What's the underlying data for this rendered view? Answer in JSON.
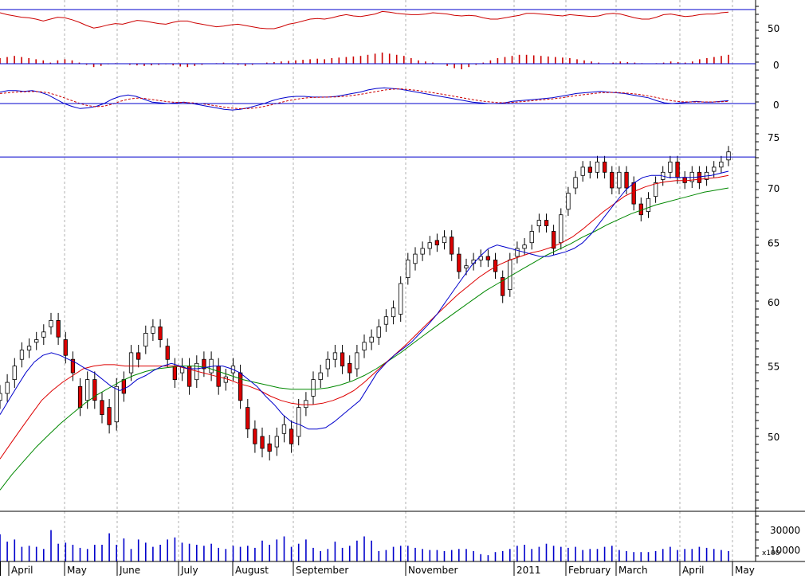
{
  "chart_data": {
    "type": "candlestick",
    "grid": true,
    "colors": {
      "frame": "#000000",
      "reference_line": "#0000cc",
      "grid": "#b0b0b0",
      "up_candle": "#ffffff",
      "down_candle": "#dd0000",
      "rsi": "#cc0000",
      "histogram": "#cc0000",
      "macd": "#0000cc",
      "macd_signal": "#cc0000",
      "ma_short": "#0000cc",
      "ma_mid": "#dd0000",
      "ma_long": "#008800",
      "volume": "#0000cc"
    },
    "x_axis": {
      "labels": [
        "April",
        "May",
        "June",
        "July",
        "August",
        "September",
        "November",
        "2011",
        "February",
        "March",
        "April",
        "May"
      ]
    },
    "rsi_panel": {
      "y_ticks": [
        "50"
      ],
      "reference_level": 70,
      "values": [
        65,
        62,
        60,
        58,
        57,
        55,
        52,
        55,
        58,
        57,
        54,
        50,
        45,
        41,
        43,
        46,
        48,
        47,
        50,
        53,
        52,
        50,
        48,
        47,
        50,
        52,
        52,
        49,
        47,
        45,
        43,
        44,
        46,
        47,
        45,
        43,
        41,
        40,
        40,
        43,
        47,
        49,
        52,
        55,
        56,
        55,
        57,
        60,
        62,
        60,
        59,
        61,
        63,
        67,
        66,
        64,
        63,
        62,
        62,
        63,
        65,
        64,
        63,
        61,
        60,
        61,
        60,
        57,
        55,
        55,
        57,
        59,
        61,
        64,
        64,
        63,
        62,
        61,
        60,
        62,
        61,
        60,
        59,
        60,
        63,
        64,
        63,
        60,
        57,
        55,
        55,
        58,
        62,
        63,
        61,
        59,
        60,
        62,
        63,
        63,
        65,
        66
      ]
    },
    "histogram_panel": {
      "y_ticks": [
        "0"
      ],
      "values": [
        0.5,
        0.6,
        0.7,
        0.6,
        0.5,
        0.4,
        0.3,
        0.1,
        0.3,
        0.4,
        0.3,
        0.1,
        -0.1,
        -0.3,
        -0.2,
        -0.05,
        0.05,
        0.0,
        -0.1,
        -0.15,
        -0.2,
        -0.15,
        -0.1,
        -0.05,
        -0.15,
        -0.25,
        -0.3,
        -0.2,
        -0.1,
        0.0,
        0.05,
        0.1,
        0.0,
        -0.1,
        -0.2,
        -0.1,
        0.0,
        0.1,
        0.15,
        0.2,
        0.25,
        0.3,
        0.35,
        0.4,
        0.45,
        0.4,
        0.5,
        0.55,
        0.6,
        0.65,
        0.7,
        0.8,
        0.9,
        1.0,
        0.9,
        0.8,
        0.7,
        0.5,
        0.3,
        0.2,
        0.1,
        0.0,
        -0.2,
        -0.4,
        -0.5,
        -0.3,
        -0.1,
        0.1,
        0.3,
        0.5,
        0.6,
        0.7,
        0.8,
        0.8,
        0.75,
        0.7,
        0.65,
        0.6,
        0.55,
        0.5,
        0.4,
        0.3,
        0.2,
        0.1,
        0.0,
        0.1,
        0.2,
        0.15,
        0.1,
        0.05,
        0.0,
        0.05,
        0.1,
        0.2,
        0.15,
        0.1,
        0.2,
        0.4,
        0.5,
        0.6,
        0.7,
        0.8
      ]
    },
    "macd_panel": {
      "y_ticks": [
        "0"
      ],
      "macd": [
        0.8,
        0.9,
        0.9,
        0.85,
        0.9,
        0.8,
        0.6,
        0.3,
        0.0,
        -0.2,
        -0.35,
        -0.3,
        -0.2,
        0.0,
        0.3,
        0.5,
        0.6,
        0.5,
        0.3,
        0.1,
        0.05,
        0.0,
        0.05,
        0.1,
        0.0,
        -0.1,
        -0.2,
        -0.3,
        -0.4,
        -0.45,
        -0.4,
        -0.3,
        -0.15,
        0.0,
        0.2,
        0.35,
        0.45,
        0.5,
        0.5,
        0.45,
        0.45,
        0.45,
        0.5,
        0.6,
        0.7,
        0.8,
        0.95,
        1.05,
        1.1,
        1.05,
        1.0,
        0.9,
        0.8,
        0.7,
        0.6,
        0.5,
        0.4,
        0.3,
        0.2,
        0.1,
        0.05,
        0.0,
        0.0,
        0.05,
        0.15,
        0.2,
        0.25,
        0.3,
        0.35,
        0.4,
        0.5,
        0.6,
        0.7,
        0.75,
        0.8,
        0.85,
        0.8,
        0.75,
        0.7,
        0.6,
        0.5,
        0.4,
        0.2,
        0.05,
        0.0,
        0.05,
        0.1,
        0.15,
        0.1,
        0.1,
        0.15,
        0.2
      ],
      "signal": [
        0.7,
        0.75,
        0.8,
        0.82,
        0.84,
        0.82,
        0.75,
        0.6,
        0.4,
        0.2,
        0.0,
        -0.15,
        -0.22,
        -0.18,
        -0.05,
        0.15,
        0.3,
        0.38,
        0.36,
        0.28,
        0.2,
        0.12,
        0.08,
        0.08,
        0.05,
        0.0,
        -0.08,
        -0.16,
        -0.25,
        -0.32,
        -0.36,
        -0.35,
        -0.3,
        -0.2,
        -0.08,
        0.06,
        0.2,
        0.3,
        0.38,
        0.42,
        0.44,
        0.45,
        0.46,
        0.5,
        0.56,
        0.64,
        0.74,
        0.84,
        0.94,
        1.0,
        1.02,
        0.98,
        0.92,
        0.84,
        0.76,
        0.67,
        0.58,
        0.48,
        0.38,
        0.28,
        0.19,
        0.12,
        0.07,
        0.05,
        0.08,
        0.12,
        0.17,
        0.22,
        0.27,
        0.32,
        0.39,
        0.47,
        0.56,
        0.63,
        0.69,
        0.75,
        0.77,
        0.77,
        0.74,
        0.69,
        0.62,
        0.53,
        0.42,
        0.3,
        0.19,
        0.13,
        0.11,
        0.11,
        0.11,
        0.11,
        0.12,
        0.15
      ]
    },
    "price_panel": {
      "y_ticks": [
        "50",
        "55",
        "60",
        "65",
        "70",
        "75"
      ],
      "y_tick_values": [
        50,
        55,
        60,
        65,
        70,
        75
      ],
      "ylim": [
        45.8,
        76.6
      ],
      "reference_level": 73.0,
      "candles_close": [
        53.0,
        53.8,
        55.0,
        56.2,
        56.5,
        57.0,
        57.6,
        58.5,
        57.2,
        55.8,
        54.5,
        52.0,
        54.0,
        52.5,
        51.5,
        50.8,
        53.5,
        53.0,
        56.0,
        55.5,
        57.5,
        58.0,
        57.0,
        55.5,
        54.0,
        55.0,
        53.5,
        55.2,
        54.8,
        55.5,
        53.5,
        54.2,
        55.0,
        52.5,
        50.5,
        49.5,
        49.2,
        49.0,
        50.0,
        50.8,
        49.5,
        52.0,
        52.5,
        54.0,
        54.5,
        55.5,
        56.0,
        55.0,
        54.5,
        56.0,
        56.8,
        57.2,
        58.0,
        58.8,
        59.5,
        61.5,
        63.5,
        64.0,
        64.5,
        65.0,
        64.8,
        65.5,
        64.0,
        62.5,
        63.0,
        63.5,
        63.8,
        63.5,
        62.5,
        60.5,
        63.5,
        64.5,
        64.8,
        66.0,
        67.0,
        66.5,
        64.5,
        67.5,
        69.5,
        71.0,
        72.0,
        71.5,
        72.5,
        71.5,
        70.0,
        71.5,
        70.0,
        68.5,
        67.5,
        69.0,
        70.5,
        71.5,
        72.5,
        71.0,
        70.5,
        71.5,
        70.5,
        71.5,
        72.0,
        72.5,
        73.5
      ],
      "candles_open": [
        52.5,
        53.0,
        54.0,
        55.5,
        56.2,
        56.8,
        57.2,
        58.0,
        58.5,
        57.0,
        55.5,
        53.5,
        52.5,
        54.0,
        52.5,
        52.0,
        51.0,
        54.0,
        54.5,
        56.0,
        56.5,
        57.5,
        58.0,
        56.5,
        55.0,
        54.5,
        55.0,
        54.0,
        55.5,
        54.5,
        55.0,
        53.8,
        54.5,
        54.5,
        52.0,
        50.5,
        50.0,
        49.5,
        49.3,
        50.2,
        50.5,
        50.0,
        52.0,
        52.8,
        54.0,
        54.8,
        55.5,
        56.0,
        55.2,
        54.8,
        56.2,
        56.8,
        57.2,
        58.2,
        58.8,
        59.0,
        62.0,
        63.2,
        64.0,
        64.5,
        65.2,
        65.0,
        65.5,
        64.0,
        62.8,
        63.2,
        63.5,
        63.8,
        63.5,
        62.0,
        61.0,
        63.8,
        64.5,
        65.0,
        66.5,
        67.0,
        66.0,
        65.0,
        68.0,
        70.0,
        71.2,
        72.0,
        71.5,
        72.5,
        71.5,
        70.0,
        71.5,
        70.5,
        68.5,
        67.8,
        69.2,
        70.8,
        71.5,
        72.5,
        71.0,
        70.6,
        71.5,
        70.8,
        71.6,
        72.0,
        72.7
      ],
      "ma_short": [
        51.5,
        52.5,
        53.5,
        54.5,
        55.3,
        55.8,
        56.0,
        55.8,
        55.5,
        55.2,
        54.8,
        54.5,
        54.0,
        53.5,
        53.2,
        53.5,
        54.0,
        54.3,
        54.7,
        55.0,
        55.2,
        55.0,
        54.8,
        54.8,
        54.9,
        55.0,
        55.0,
        54.8,
        54.5,
        54.0,
        53.5,
        52.8,
        52.2,
        51.5,
        51.0,
        50.8,
        50.5,
        50.5,
        50.6,
        51.0,
        51.5,
        52.0,
        52.5,
        53.5,
        54.5,
        55.2,
        55.8,
        56.3,
        56.8,
        57.5,
        58.2,
        59.0,
        60.0,
        61.0,
        62.0,
        63.0,
        63.8,
        64.5,
        64.8,
        64.6,
        64.4,
        64.2,
        64.0,
        63.8,
        63.8,
        64.0,
        64.2,
        64.5,
        65.0,
        65.8,
        66.8,
        67.8,
        68.8,
        69.8,
        70.5,
        71.0,
        71.2,
        71.2,
        71.0,
        71.0,
        71.0,
        71.0,
        71.1,
        71.2,
        71.4,
        71.6
      ],
      "ma_mid": [
        48.5,
        49.5,
        50.5,
        51.5,
        52.5,
        53.2,
        53.8,
        54.3,
        54.8,
        55.0,
        55.1,
        55.1,
        55.0,
        55.0,
        55.0,
        55.0,
        55.0,
        55.0,
        54.8,
        54.6,
        54.4,
        54.2,
        54.0,
        53.7,
        53.5,
        53.2,
        52.8,
        52.5,
        52.3,
        52.2,
        52.2,
        52.3,
        52.5,
        52.8,
        53.2,
        53.8,
        54.5,
        55.2,
        55.9,
        56.6,
        57.4,
        58.2,
        59.0,
        59.8,
        60.6,
        61.3,
        62.0,
        62.6,
        63.1,
        63.5,
        63.8,
        64.1,
        64.3,
        64.6,
        65.0,
        65.5,
        66.2,
        67.0,
        67.8,
        68.5,
        69.2,
        69.7,
        70.1,
        70.4,
        70.6,
        70.7,
        70.7,
        70.8,
        70.9,
        71.0,
        71.2
      ],
      "ma_long": [
        46.5,
        47.5,
        48.4,
        49.3,
        50.1,
        50.9,
        51.6,
        52.3,
        52.9,
        53.4,
        53.9,
        54.3,
        54.6,
        54.8,
        54.9,
        55.0,
        55.0,
        54.9,
        54.6,
        54.3,
        54.0,
        53.8,
        53.6,
        53.4,
        53.3,
        53.3,
        53.3,
        53.4,
        53.6,
        53.9,
        54.3,
        54.8,
        55.4,
        56.0,
        56.7,
        57.4,
        58.1,
        58.8,
        59.5,
        60.2,
        60.9,
        61.5,
        62.1,
        62.7,
        63.3,
        63.9,
        64.4,
        64.9,
        65.5,
        66.0,
        66.6,
        67.1,
        67.6,
        68.0,
        68.4,
        68.7,
        69.0,
        69.3,
        69.6,
        69.8,
        70.0
      ]
    },
    "volume_panel": {
      "y_ticks": [
        "30000",
        "10000"
      ],
      "y_tick_values": [
        30000,
        10000
      ],
      "ylim": [
        0,
        48000
      ],
      "unit_label": "x100",
      "values": [
        26000,
        19000,
        21000,
        14000,
        15000,
        14000,
        12000,
        30000,
        17000,
        18000,
        16000,
        13000,
        12000,
        16000,
        16000,
        27000,
        16000,
        22000,
        12000,
        21000,
        18000,
        14000,
        16000,
        21000,
        23000,
        18000,
        17000,
        16000,
        15000,
        17000,
        13000,
        12000,
        15000,
        14000,
        15000,
        13000,
        20000,
        16000,
        21000,
        24000,
        14000,
        17000,
        21000,
        13000,
        10000,
        12000,
        19000,
        13000,
        15000,
        20000,
        24000,
        20000,
        10000,
        11000,
        14000,
        15000,
        15000,
        13000,
        12000,
        11000,
        11000,
        10000,
        11000,
        12000,
        12000,
        10000,
        7000,
        6000,
        9000,
        10000,
        12000,
        15000,
        16000,
        12000,
        14000,
        17000,
        15000,
        14000,
        13000,
        14000,
        11000,
        12000,
        12000,
        14000,
        15000,
        11000,
        10000,
        9000,
        9000,
        9000,
        10000,
        12000,
        14000,
        11000,
        12000,
        12000,
        14000,
        13000,
        12000,
        11000,
        10000
      ]
    }
  }
}
